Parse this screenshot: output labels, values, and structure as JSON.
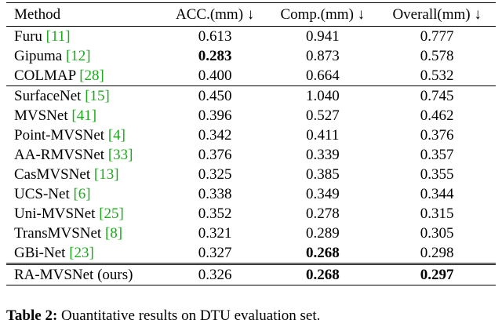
{
  "table": {
    "header": [
      "Method",
      "ACC.(mm) ↓",
      "Comp.(mm) ↓",
      "Overall(mm) ↓"
    ],
    "groups": [
      [
        {
          "method": "Furu",
          "cite": "[11]",
          "values": [
            "0.613",
            "0.941",
            "0.777"
          ],
          "bold": []
        },
        {
          "method": "Gipuma",
          "cite": "[12]",
          "values": [
            "0.283",
            "0.873",
            "0.578"
          ],
          "bold": [
            0
          ]
        },
        {
          "method": "COLMAP",
          "cite": "[28]",
          "values": [
            "0.400",
            "0.664",
            "0.532"
          ],
          "bold": []
        }
      ],
      [
        {
          "method": "SurfaceNet",
          "cite": "[15]",
          "values": [
            "0.450",
            "1.040",
            "0.745"
          ],
          "bold": []
        },
        {
          "method": "MVSNet",
          "cite": "[41]",
          "values": [
            "0.396",
            "0.527",
            "0.462"
          ],
          "bold": []
        },
        {
          "method": "Point-MVSNet",
          "cite": "[4]",
          "values": [
            "0.342",
            "0.411",
            "0.376"
          ],
          "bold": []
        },
        {
          "method": "AA-RMVSNet",
          "cite": "[33]",
          "values": [
            "0.376",
            "0.339",
            "0.357"
          ],
          "bold": []
        },
        {
          "method": "CasMVSNet",
          "cite": "[13]",
          "values": [
            "0.325",
            "0.385",
            "0.355"
          ],
          "bold": []
        },
        {
          "method": "UCS-Net",
          "cite": "[6]",
          "values": [
            "0.338",
            "0.349",
            "0.344"
          ],
          "bold": []
        },
        {
          "method": "Uni-MVSNet",
          "cite": "[25]",
          "values": [
            "0.352",
            "0.278",
            "0.315"
          ],
          "bold": []
        },
        {
          "method": "TransMVSNet",
          "cite": "[8]",
          "values": [
            "0.321",
            "0.289",
            "0.305"
          ],
          "bold": []
        },
        {
          "method": "GBi-Net",
          "cite": "[23]",
          "values": [
            "0.327",
            "0.268",
            "0.298"
          ],
          "bold": [
            1
          ]
        }
      ],
      [
        {
          "method": "RA-MVSNet (ours)",
          "values": [
            "0.326",
            "0.268",
            "0.297"
          ],
          "bold": [
            1,
            2
          ]
        }
      ]
    ]
  },
  "caption": {
    "label": "Table 2:",
    "text": "Quantitative results on DTU evaluation set."
  }
}
